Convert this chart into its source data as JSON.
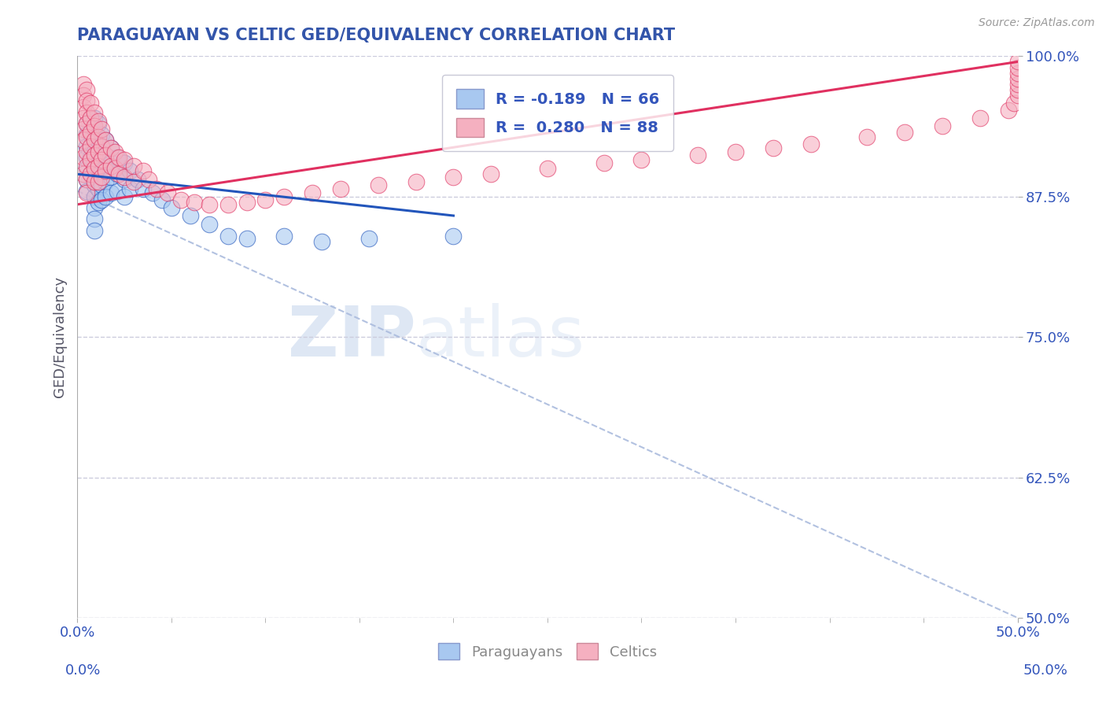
{
  "title": "PARAGUAYAN VS CELTIC GED/EQUIVALENCY CORRELATION CHART",
  "source_text": "Source: ZipAtlas.com",
  "ylabel": "GED/Equivalency",
  "xlim": [
    0.0,
    0.5
  ],
  "ylim": [
    0.5,
    1.0
  ],
  "xtick_labels": [
    "0.0%",
    "50.0%"
  ],
  "ytick_labels": [
    "50.0%",
    "62.5%",
    "75.0%",
    "87.5%",
    "100.0%"
  ],
  "ytick_vals": [
    0.5,
    0.625,
    0.75,
    0.875,
    1.0
  ],
  "xtick_vals": [
    0.0,
    0.5
  ],
  "blue_color": "#A8C8F0",
  "pink_color": "#F5B0C0",
  "blue_line_color": "#2255BB",
  "pink_line_color": "#E03060",
  "title_color": "#3355AA",
  "axis_label_color": "#555566",
  "tick_color": "#3355BB",
  "watermark_zip": "ZIP",
  "watermark_atlas": "atlas",
  "grid_color": "#CCCCDD",
  "ref_line_color": "#AABBDD",
  "paraguayans_x": [
    0.005,
    0.005,
    0.005,
    0.005,
    0.005,
    0.005,
    0.005,
    0.007,
    0.007,
    0.007,
    0.007,
    0.007,
    0.009,
    0.009,
    0.009,
    0.009,
    0.009,
    0.009,
    0.009,
    0.009,
    0.009,
    0.009,
    0.009,
    0.011,
    0.011,
    0.011,
    0.011,
    0.011,
    0.011,
    0.011,
    0.013,
    0.013,
    0.013,
    0.013,
    0.013,
    0.013,
    0.015,
    0.015,
    0.015,
    0.015,
    0.015,
    0.018,
    0.018,
    0.018,
    0.018,
    0.021,
    0.021,
    0.021,
    0.025,
    0.025,
    0.025,
    0.028,
    0.028,
    0.032,
    0.035,
    0.04,
    0.045,
    0.05,
    0.06,
    0.07,
    0.08,
    0.09,
    0.11,
    0.13,
    0.155,
    0.2
  ],
  "paraguayans_y": [
    0.94,
    0.93,
    0.92,
    0.91,
    0.9,
    0.89,
    0.88,
    0.945,
    0.93,
    0.92,
    0.91,
    0.895,
    0.945,
    0.935,
    0.925,
    0.915,
    0.905,
    0.895,
    0.885,
    0.875,
    0.865,
    0.855,
    0.845,
    0.94,
    0.925,
    0.915,
    0.905,
    0.895,
    0.882,
    0.87,
    0.93,
    0.918,
    0.908,
    0.898,
    0.885,
    0.872,
    0.925,
    0.912,
    0.9,
    0.888,
    0.875,
    0.918,
    0.905,
    0.892,
    0.878,
    0.91,
    0.895,
    0.88,
    0.905,
    0.89,
    0.875,
    0.898,
    0.882,
    0.89,
    0.882,
    0.878,
    0.872,
    0.865,
    0.858,
    0.85,
    0.84,
    0.838,
    0.84,
    0.835,
    0.838,
    0.84
  ],
  "celtics_x": [
    0.003,
    0.003,
    0.003,
    0.003,
    0.003,
    0.003,
    0.003,
    0.003,
    0.005,
    0.005,
    0.005,
    0.005,
    0.005,
    0.005,
    0.005,
    0.005,
    0.005,
    0.007,
    0.007,
    0.007,
    0.007,
    0.007,
    0.007,
    0.009,
    0.009,
    0.009,
    0.009,
    0.009,
    0.009,
    0.011,
    0.011,
    0.011,
    0.011,
    0.011,
    0.013,
    0.013,
    0.013,
    0.013,
    0.015,
    0.015,
    0.015,
    0.018,
    0.018,
    0.02,
    0.02,
    0.022,
    0.022,
    0.025,
    0.025,
    0.03,
    0.03,
    0.035,
    0.038,
    0.042,
    0.048,
    0.055,
    0.062,
    0.07,
    0.08,
    0.09,
    0.1,
    0.11,
    0.125,
    0.14,
    0.16,
    0.18,
    0.2,
    0.22,
    0.25,
    0.28,
    0.3,
    0.33,
    0.35,
    0.37,
    0.39,
    0.42,
    0.44,
    0.46,
    0.48,
    0.495,
    0.498,
    0.5,
    0.5,
    0.5,
    0.5,
    0.5,
    0.5,
    0.5
  ],
  "celtics_y": [
    0.975,
    0.965,
    0.955,
    0.945,
    0.935,
    0.925,
    0.91,
    0.895,
    0.97,
    0.96,
    0.95,
    0.94,
    0.928,
    0.915,
    0.902,
    0.89,
    0.878,
    0.958,
    0.945,
    0.932,
    0.92,
    0.908,
    0.895,
    0.95,
    0.938,
    0.925,
    0.912,
    0.9,
    0.888,
    0.942,
    0.928,
    0.915,
    0.902,
    0.888,
    0.935,
    0.92,
    0.908,
    0.892,
    0.925,
    0.912,
    0.898,
    0.918,
    0.902,
    0.915,
    0.9,
    0.91,
    0.895,
    0.908,
    0.892,
    0.902,
    0.888,
    0.898,
    0.89,
    0.882,
    0.878,
    0.872,
    0.87,
    0.868,
    0.868,
    0.87,
    0.872,
    0.875,
    0.878,
    0.882,
    0.885,
    0.888,
    0.892,
    0.895,
    0.9,
    0.905,
    0.908,
    0.912,
    0.915,
    0.918,
    0.922,
    0.928,
    0.932,
    0.938,
    0.945,
    0.952,
    0.958,
    0.965,
    0.97,
    0.975,
    0.98,
    0.985,
    0.99,
    0.995
  ],
  "pink_trend_x0": 0.0,
  "pink_trend_y0": 0.868,
  "pink_trend_x1": 0.5,
  "pink_trend_y1": 0.995,
  "blue_trend_x0": 0.0,
  "blue_trend_y0": 0.895,
  "blue_trend_x1": 0.2,
  "blue_trend_y1": 0.858,
  "ref_line_x0": 0.0,
  "ref_line_y0": 0.88,
  "ref_line_x1": 0.5,
  "ref_line_y1": 0.5
}
